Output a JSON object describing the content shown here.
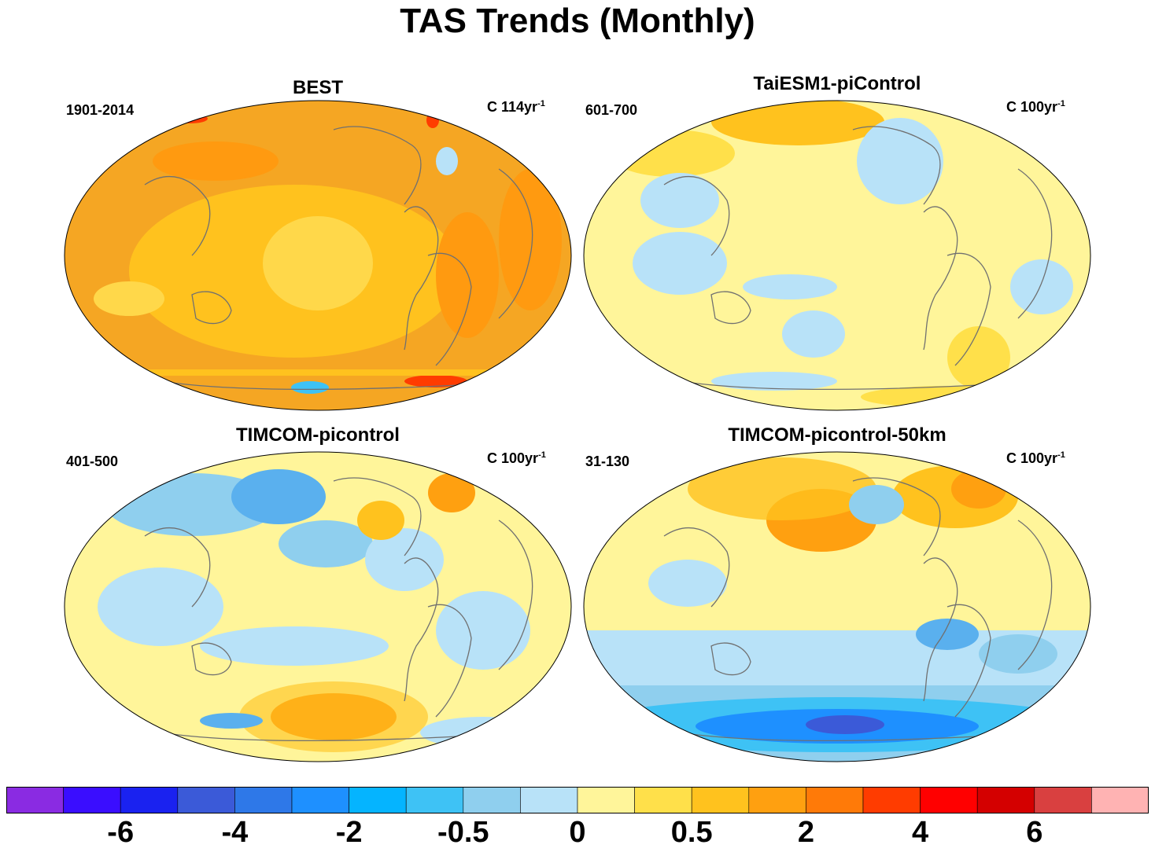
{
  "title": "TAS Trends (Monthly)",
  "panels": [
    {
      "name": "BEST",
      "period": "1901-2014",
      "units": "C 114yr",
      "units_sup": "-1",
      "base": "#f5a623",
      "mean_trend": "warm"
    },
    {
      "name": "TaiESM1-piControl",
      "period": "601-700",
      "units": "C 100yr",
      "units_sup": "-1",
      "base": "#fff59a",
      "mean_trend": "neutral"
    },
    {
      "name": "TIMCOM-picontrol",
      "period": "401-500",
      "units": "C 100yr",
      "units_sup": "-1",
      "base": "#fff59a",
      "mean_trend": "neutral"
    },
    {
      "name": "TIMCOM-picontrol-50km",
      "period": "31-130",
      "units": "C 100yr",
      "units_sup": "-1",
      "base": "#fff59a",
      "mean_trend": "neutral"
    }
  ],
  "colorbar": {
    "colors": [
      "#8a2be2",
      "#3a0dff",
      "#1a22f0",
      "#3b5ad8",
      "#2e78e8",
      "#1e90ff",
      "#05b4ff",
      "#3ec2f5",
      "#8fcfee",
      "#b8e2f8",
      "#fff59a",
      "#ffe04a",
      "#ffc21e",
      "#ffa010",
      "#ff7a08",
      "#ff3c00",
      "#ff0000",
      "#d40000",
      "#d94040",
      "#ffb3b3"
    ],
    "labels": [
      "-6",
      "-4",
      "-2",
      "-0.5",
      "0",
      "0.5",
      "2",
      "4",
      "6"
    ],
    "label_boundaries": [
      2,
      4,
      6,
      8,
      10,
      12,
      14,
      16,
      18
    ]
  },
  "icons": [
    "coastline-outline"
  ]
}
